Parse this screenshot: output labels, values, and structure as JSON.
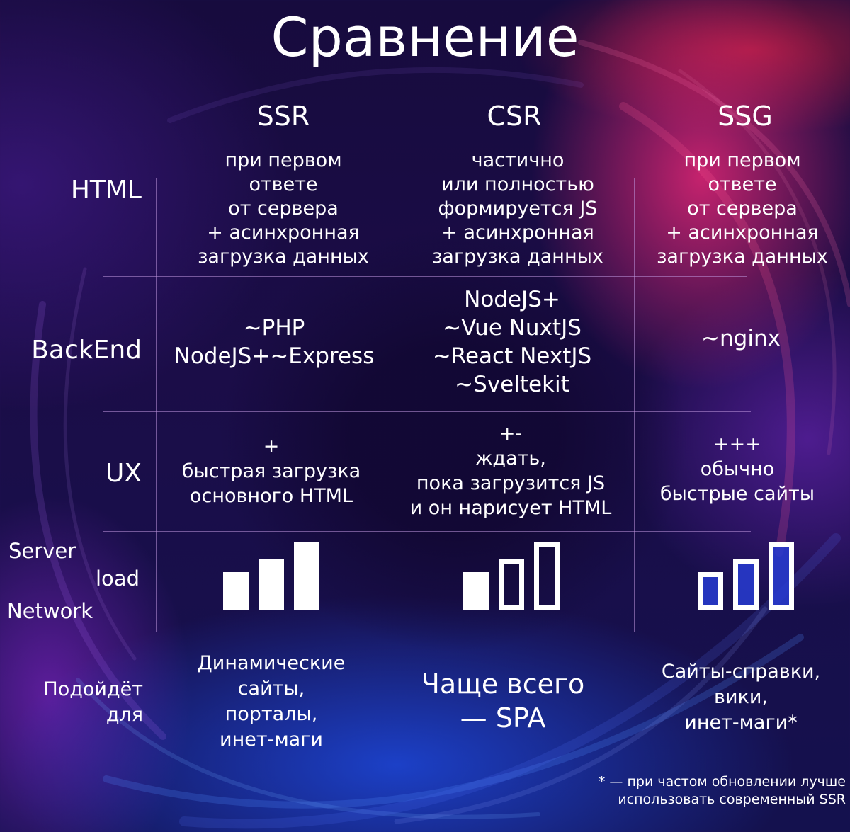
{
  "title": "Сравнение",
  "columns": [
    "SSR",
    "CSR",
    "SSG"
  ],
  "rows": {
    "html": {
      "label": "HTML",
      "cells": [
        [
          "при первом",
          "ответе",
          "от сервера",
          "+ асинхронная",
          "загрузка данных"
        ],
        [
          "частично",
          "или полностью",
          "формируется JS",
          "+ асинхронная",
          "загрузка данных"
        ],
        [
          "при первом",
          "ответе",
          "от сервера",
          "+ асинхронная",
          "загрузка данных"
        ]
      ]
    },
    "backend": {
      "label": "BackEnd",
      "cells": [
        [
          "~PHP",
          "NodeJS+~Express"
        ],
        [
          "NodeJS+",
          "~Vue NuxtJS",
          "~React NextJS",
          "~Sveltekit"
        ],
        [
          "~nginx"
        ]
      ]
    },
    "ux": {
      "label": "UX",
      "cells": [
        [
          "+",
          "быстрая загрузка",
          "основного HTML"
        ],
        [
          "+-",
          "ждать,",
          "пока загрузится JS",
          "и он нарисует HTML"
        ],
        [
          "+++",
          "обычно",
          "быстрые сайты"
        ]
      ]
    },
    "load": {
      "label_lines": [
        "Server",
        "load",
        "Network"
      ],
      "bar_heights": [
        0.55,
        0.75,
        1.0
      ],
      "fill_styles": [
        [
          "filled",
          "filled",
          "filled"
        ],
        [
          "filled",
          "outline",
          "outline"
        ],
        [
          "outline-blue",
          "outline-blue",
          "outline-blue"
        ]
      ]
    },
    "use_for": {
      "label_lines": [
        "Подойдёт",
        "для"
      ],
      "cells": [
        [
          "Динамические",
          "сайты,",
          "порталы,",
          "инет-маги"
        ],
        [
          "Чаще всего",
          "— SPA"
        ],
        [
          "Сайты-справки,",
          "вики,",
          "инет-маги*"
        ]
      ]
    }
  },
  "footnote": [
    "* — при частом обновлении лучше",
    "использовать современный SSR"
  ],
  "colors": {
    "text": "#ffffff",
    "grid": "#be96dc",
    "accent_pink": "#f02878",
    "accent_blue": "#1e50f0",
    "background": "#0e0830"
  }
}
